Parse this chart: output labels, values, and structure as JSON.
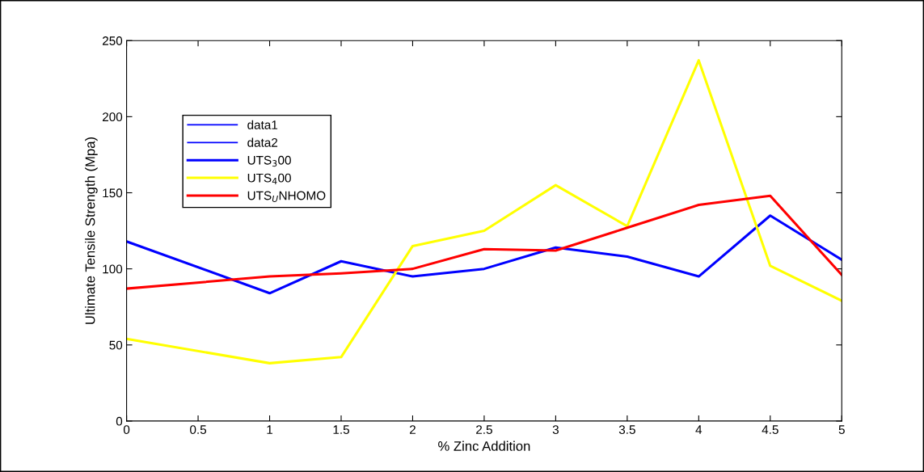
{
  "chart_data": {
    "type": "line",
    "xlabel": "% Zinc Addition",
    "ylabel": "Ultimate Tensile Strength (Mpa)",
    "x": [
      0,
      1,
      1.5,
      2,
      2.5,
      3,
      3.5,
      4,
      4.5,
      5
    ],
    "series": [
      {
        "name": "data1",
        "color": "#0000ff",
        "values": [
          null,
          null,
          null,
          null,
          null,
          null,
          null,
          null,
          null,
          null
        ]
      },
      {
        "name": "data2",
        "color": "#0000ff",
        "values": [
          null,
          null,
          null,
          null,
          null,
          null,
          null,
          null,
          null,
          null
        ]
      },
      {
        "name": "UTS$_{3}$00",
        "color": "#0000ff",
        "values": [
          118,
          84,
          105,
          95,
          100,
          114,
          108,
          95,
          135,
          106
        ]
      },
      {
        "name": "UTS$_{4}$00",
        "color": "#ffff00",
        "values": [
          54,
          38,
          42,
          115,
          125,
          155,
          128,
          237,
          102,
          79
        ]
      },
      {
        "name": "UTS$_{U}$NHOMO",
        "color": "#ff0000",
        "values": [
          87,
          95,
          97,
          100,
          113,
          112,
          127,
          142,
          148,
          96
        ]
      }
    ],
    "xlim": [
      0,
      5
    ],
    "xticks": [
      0,
      0.5,
      1,
      1.5,
      2,
      2.5,
      3,
      3.5,
      4,
      4.5,
      5
    ],
    "ylim": [
      0,
      250
    ],
    "yticks": [
      0,
      50,
      100,
      150,
      200,
      250
    ],
    "grid": false,
    "legend": "top left",
    "marker": "none",
    "line_style": "solid"
  }
}
